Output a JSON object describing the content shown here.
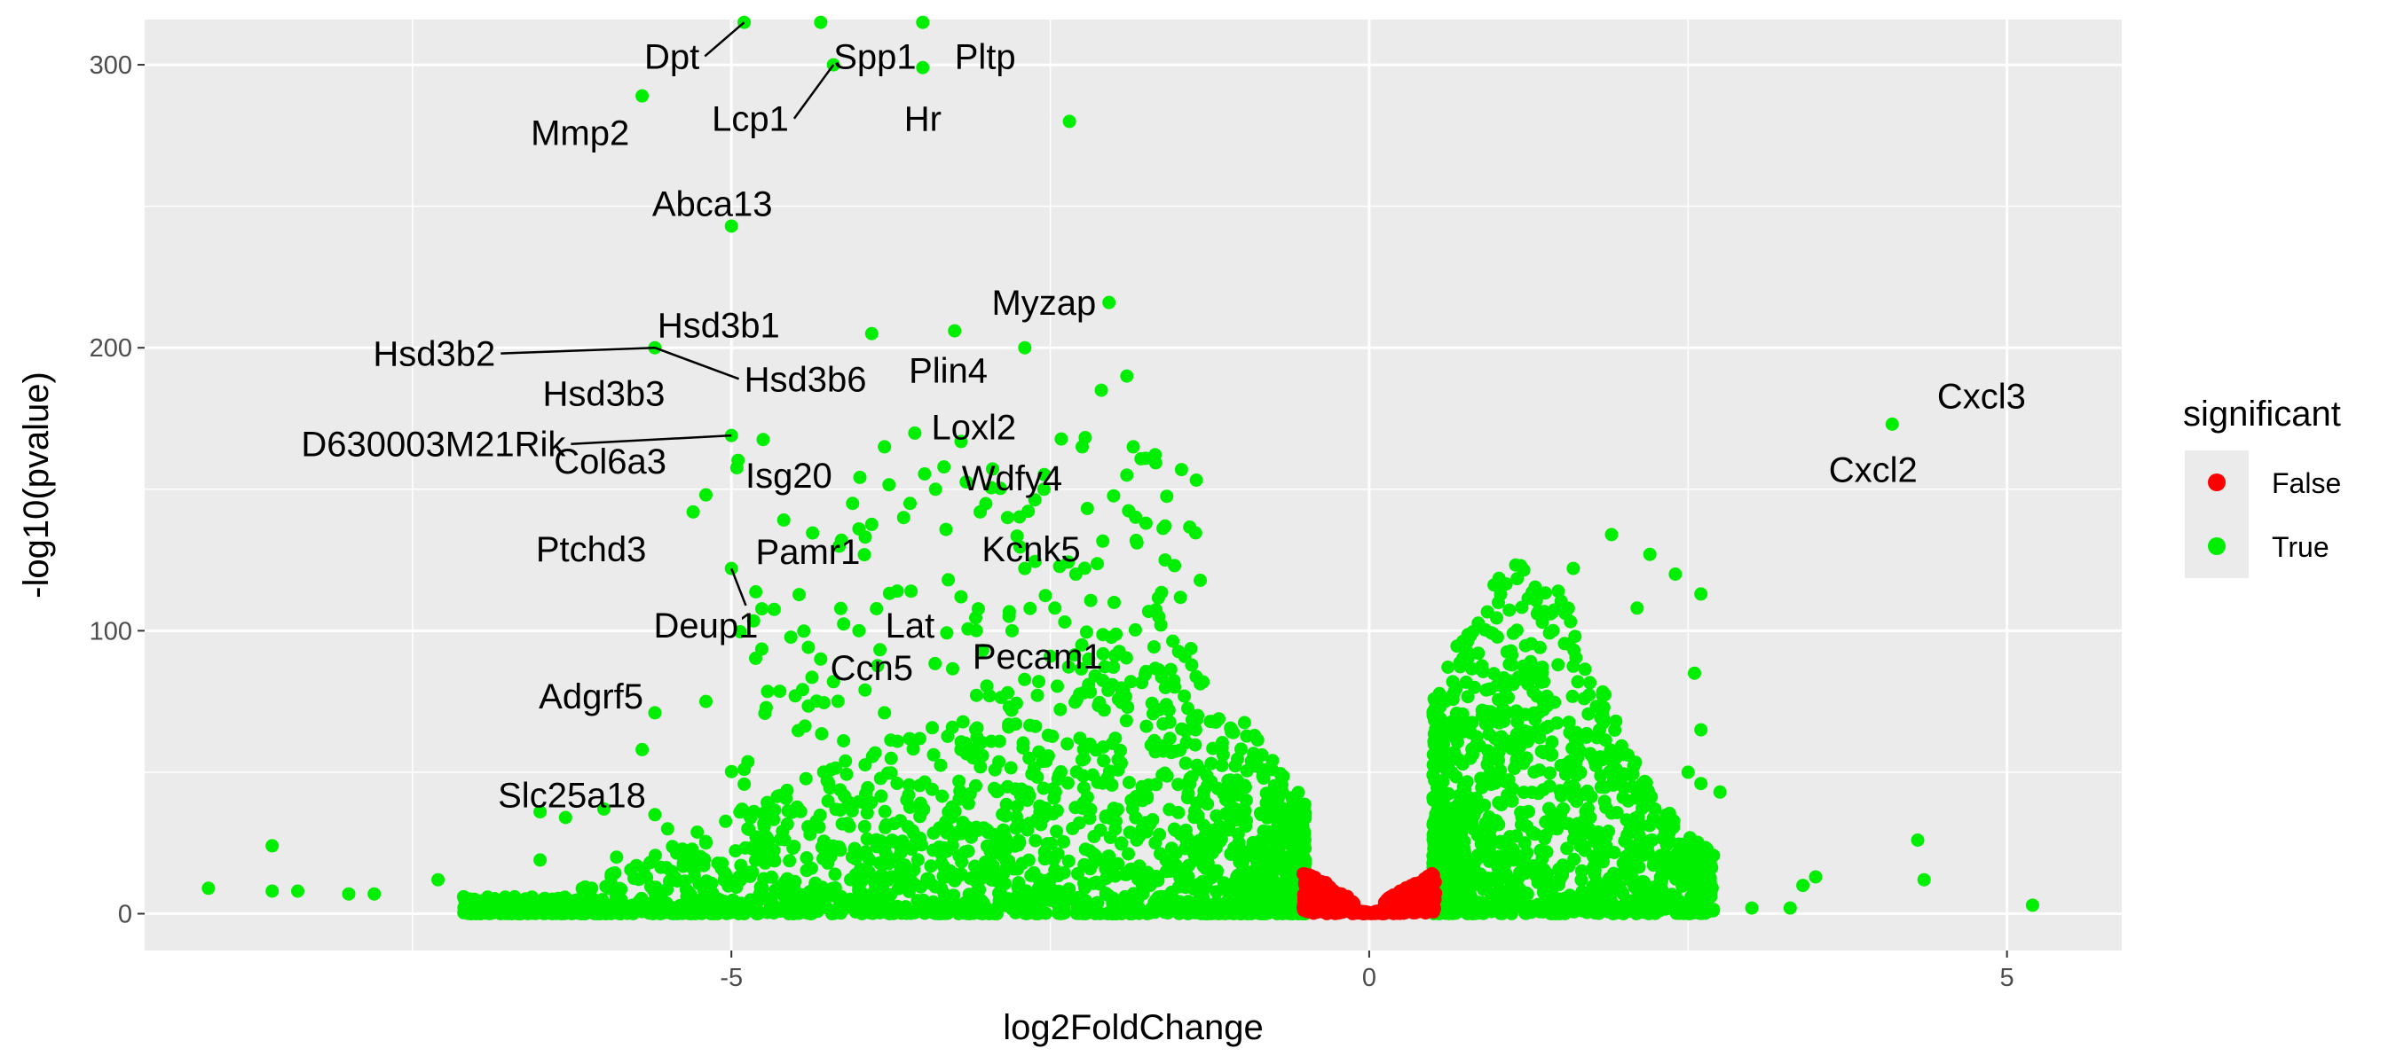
{
  "chart_data": {
    "type": "scatter",
    "title": "",
    "xlabel": "log2FoldChange",
    "ylabel": "-log10(pvalue)",
    "xlim": [
      -9.6,
      5.9
    ],
    "ylim": [
      -13,
      316
    ],
    "x_ticks": [
      -5,
      0,
      5
    ],
    "x_tick_labels": [
      "-5",
      "0",
      "5"
    ],
    "y_ticks": [
      0,
      100,
      200,
      300
    ],
    "y_tick_labels": [
      "0",
      "100",
      "200",
      "300"
    ],
    "grid": true,
    "legend": {
      "title": "significant",
      "placement": "right",
      "entries": [
        {
          "label": "False",
          "color": "#ff0000"
        },
        {
          "label": "True",
          "color": "#00ee00"
        }
      ]
    },
    "colors": {
      "panel_background": "#ebebeb",
      "grid": "#ffffff",
      "significant_false": "#ff0000",
      "significant_true": "#00ee00"
    },
    "series": [
      {
        "name": "True",
        "points": [
          {
            "x": -4.9,
            "y": 315,
            "label": "Dpt"
          },
          {
            "x": -4.2,
            "y": 300,
            "label": "Spp1"
          },
          {
            "x": -3.5,
            "y": 299,
            "label": "Pltp"
          },
          {
            "x": -4.2,
            "y": 300,
            "label": "Lcp1"
          },
          {
            "x": -3.5,
            "y": 299,
            "label": "Hr"
          },
          {
            "x": -5.7,
            "y": 289,
            "label": "Mmp2"
          },
          {
            "x": -5.0,
            "y": 243,
            "label": "Abca13"
          },
          {
            "x": -2.04,
            "y": 216,
            "label": "Myzap"
          },
          {
            "x": -5.6,
            "y": 200,
            "label": "Hsd3b2"
          },
          {
            "x": -5.6,
            "y": 200,
            "label": "Hsd3b1"
          },
          {
            "x": -5.6,
            "y": 200,
            "label": "Hsd3b3"
          },
          {
            "x": -5.6,
            "y": 200,
            "label": "Hsd3b6"
          },
          {
            "x": -2.7,
            "y": 200,
            "label": "Plin4"
          },
          {
            "x": -3.8,
            "y": 165,
            "label": "Loxl2"
          },
          {
            "x": -5.0,
            "y": 169,
            "label": "D630003M21Rik"
          },
          {
            "x": -5.2,
            "y": 148,
            "label": "Col6a3"
          },
          {
            "x": -3.4,
            "y": 150,
            "label": "Isg20"
          },
          {
            "x": -2.55,
            "y": 150,
            "label": "Wdfy4"
          },
          {
            "x": -5.3,
            "y": 142,
            "label": "Ptchd3"
          },
          {
            "x": -5.0,
            "y": 122,
            "label": "Pamr1"
          },
          {
            "x": -5.0,
            "y": 122,
            "label": "Deup1"
          },
          {
            "x": -2.7,
            "y": 122,
            "label": "Kcnk5"
          },
          {
            "x": -4.0,
            "y": 100,
            "label": "Lat"
          },
          {
            "x": -2.5,
            "y": 91,
            "label": "Pecam1"
          },
          {
            "x": -4.2,
            "y": 82,
            "label": "Ccn5"
          },
          {
            "x": -5.6,
            "y": 71,
            "label": "Adgrf5"
          },
          {
            "x": -6.5,
            "y": 36,
            "label": "Slc25a18"
          },
          {
            "x": 4.1,
            "y": 173,
            "label": "Cxcl3"
          },
          {
            "x": 4.1,
            "y": 173,
            "label": "Cxcl2"
          }
        ]
      },
      {
        "name": "False",
        "points": []
      }
    ],
    "labels": [
      {
        "text": "Dpt",
        "x": -5.25,
        "y": 303,
        "anchor": "end",
        "point": [
          -4.9,
          315
        ]
      },
      {
        "text": "Spp1",
        "x": -4.2,
        "y": 303,
        "anchor": "start",
        "point": null
      },
      {
        "text": "Pltp",
        "x": -3.25,
        "y": 303,
        "anchor": "start",
        "point": null
      },
      {
        "text": "Lcp1",
        "x": -4.55,
        "y": 281,
        "anchor": "end",
        "point": [
          -4.2,
          300
        ]
      },
      {
        "text": "Hr",
        "x": -3.5,
        "y": 281,
        "anchor": "middle",
        "point": null
      },
      {
        "text": "Mmp2",
        "x": -5.8,
        "y": 276,
        "anchor": "end",
        "point": null
      },
      {
        "text": "Abca13",
        "x": -5.15,
        "y": 251,
        "anchor": "middle",
        "point": null
      },
      {
        "text": "Myzap",
        "x": -2.55,
        "y": 216,
        "anchor": "middle",
        "point": null
      },
      {
        "text": "Hsd3b2",
        "x": -6.85,
        "y": 198,
        "anchor": "end",
        "point": [
          -5.6,
          200
        ]
      },
      {
        "text": "Hsd3b1",
        "x": -5.1,
        "y": 208,
        "anchor": "middle",
        "point": null
      },
      {
        "text": "Hsd3b3",
        "x": -6.0,
        "y": 184,
        "anchor": "middle",
        "point": null
      },
      {
        "text": "Hsd3b6",
        "x": -4.9,
        "y": 189,
        "anchor": "start",
        "point": [
          -5.6,
          200
        ]
      },
      {
        "text": "Plin4",
        "x": -3.3,
        "y": 192,
        "anchor": "middle",
        "point": null
      },
      {
        "text": "Loxl2",
        "x": -3.1,
        "y": 172,
        "anchor": "middle",
        "point": null
      },
      {
        "text": "D630003M21Rik",
        "x": -6.3,
        "y": 166,
        "anchor": "end",
        "point": [
          -5.0,
          169
        ]
      },
      {
        "text": "Col6a3",
        "x": -5.95,
        "y": 160,
        "anchor": "middle",
        "point": null
      },
      {
        "text": "Isg20",
        "x": -4.55,
        "y": 155,
        "anchor": "middle",
        "point": null
      },
      {
        "text": "Wdfy4",
        "x": -2.8,
        "y": 154,
        "anchor": "middle",
        "point": null
      },
      {
        "text": "Ptchd3",
        "x": -6.1,
        "y": 129,
        "anchor": "middle",
        "point": null
      },
      {
        "text": "Pamr1",
        "x": -4.4,
        "y": 128,
        "anchor": "middle",
        "point": null
      },
      {
        "text": "Deup1",
        "x": -5.2,
        "y": 102,
        "anchor": "middle",
        "point": [
          -5.0,
          122
        ]
      },
      {
        "text": "Kcnk5",
        "x": -2.65,
        "y": 129,
        "anchor": "middle",
        "point": null
      },
      {
        "text": "Lat",
        "x": -3.6,
        "y": 102,
        "anchor": "middle",
        "point": null
      },
      {
        "text": "Ccn5",
        "x": -3.9,
        "y": 87,
        "anchor": "middle",
        "point": null
      },
      {
        "text": "Pecam1",
        "x": -2.6,
        "y": 91,
        "anchor": "middle",
        "point": null
      },
      {
        "text": "Adgrf5",
        "x": -6.1,
        "y": 77,
        "anchor": "middle",
        "point": null
      },
      {
        "text": "Slc25a18",
        "x": -6.25,
        "y": 42,
        "anchor": "middle",
        "point": null
      },
      {
        "text": "Cxcl3",
        "x": 4.8,
        "y": 183,
        "anchor": "middle",
        "point": null
      },
      {
        "text": "Cxcl2",
        "x": 3.95,
        "y": 157,
        "anchor": "middle",
        "point": null
      }
    ]
  }
}
